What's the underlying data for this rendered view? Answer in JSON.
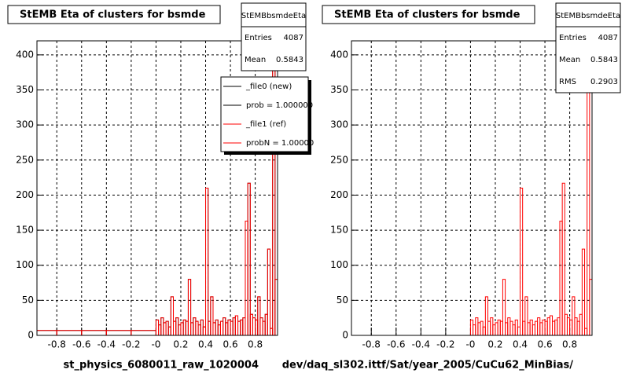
{
  "chart_data": [
    {
      "type": "histogram",
      "title": "StEMB Eta of clusters for bsmde",
      "xlabel": "st_physics_6080011_raw_1020004",
      "bins": [
        -0.96,
        -0.8,
        -0.6,
        -0.4,
        -0.2,
        0,
        0.02,
        0.04,
        0.06,
        0.08,
        0.1,
        0.12,
        0.14,
        0.16,
        0.18,
        0.2,
        0.22,
        0.24,
        0.26,
        0.28,
        0.3,
        0.32,
        0.34,
        0.36,
        0.38,
        0.4,
        0.42,
        0.44,
        0.46,
        0.48,
        0.5,
        0.52,
        0.54,
        0.56,
        0.58,
        0.6,
        0.62,
        0.64,
        0.66,
        0.68,
        0.7,
        0.72,
        0.74,
        0.76,
        0.78,
        0.8,
        0.82,
        0.84,
        0.86,
        0.88,
        0.9,
        0.92,
        0.94,
        0.96,
        0.98
      ],
      "series": [
        {
          "name": "_file0 (new)",
          "color": "#000000",
          "values": [
            7,
            7,
            7,
            7,
            7,
            22,
            15,
            25,
            18,
            20,
            12,
            55,
            20,
            25,
            15,
            18,
            22,
            20,
            80,
            18,
            25,
            20,
            15,
            22,
            12,
            210,
            20,
            55,
            18,
            22,
            15,
            20,
            25,
            18,
            22,
            20,
            25,
            28,
            20,
            22,
            25,
            163,
            217,
            30,
            25,
            22,
            55,
            25,
            20,
            30,
            123,
            10,
            400,
            80
          ]
        },
        {
          "name": "_file1 (ref)",
          "color": "#ff0000",
          "values": [
            7,
            7,
            7,
            7,
            7,
            22,
            15,
            25,
            18,
            20,
            12,
            55,
            20,
            25,
            15,
            18,
            22,
            20,
            80,
            18,
            25,
            20,
            15,
            22,
            12,
            210,
            20,
            55,
            18,
            22,
            15,
            20,
            25,
            18,
            22,
            20,
            25,
            28,
            20,
            22,
            25,
            163,
            217,
            30,
            25,
            22,
            55,
            25,
            20,
            30,
            123,
            10,
            400,
            80
          ]
        }
      ],
      "legend_notes": [
        "prob = 1.000000",
        "probN = 1.00000"
      ],
      "stats": {
        "title": "StEMBbsmdeEta",
        "rows": [
          [
            "Entries",
            "4087"
          ],
          [
            "Mean",
            "0.5843"
          ]
        ]
      },
      "xlim": [
        -0.96,
        0.98
      ],
      "ylim": [
        0,
        420
      ],
      "xticks": [
        -0.8,
        -0.6,
        -0.4,
        -0.2,
        {
          "value": 0,
          "label": "-0"
        },
        0.2,
        0.4,
        0.6,
        0.8
      ],
      "yticks": [
        0,
        50,
        100,
        150,
        200,
        250,
        300,
        350,
        400
      ],
      "grid": true
    },
    {
      "type": "histogram",
      "title": "StEMB Eta of clusters for bsmde",
      "xlabel": "dev/daq_sl302.ittf/Sat/year_2005/CuCu62_MinBias/",
      "bins": [
        -0.96,
        -0.8,
        -0.6,
        -0.4,
        -0.2,
        0,
        0.02,
        0.04,
        0.06,
        0.08,
        0.1,
        0.12,
        0.14,
        0.16,
        0.18,
        0.2,
        0.22,
        0.24,
        0.26,
        0.28,
        0.3,
        0.32,
        0.34,
        0.36,
        0.38,
        0.4,
        0.42,
        0.44,
        0.46,
        0.48,
        0.5,
        0.52,
        0.54,
        0.56,
        0.58,
        0.6,
        0.62,
        0.64,
        0.66,
        0.68,
        0.7,
        0.72,
        0.74,
        0.76,
        0.78,
        0.8,
        0.82,
        0.84,
        0.86,
        0.88,
        0.9,
        0.92,
        0.94,
        0.96,
        0.98
      ],
      "series": [
        {
          "color": "#ff0000",
          "values": [
            0,
            0,
            0,
            0,
            0,
            22,
            15,
            25,
            18,
            20,
            12,
            55,
            20,
            25,
            15,
            18,
            22,
            20,
            80,
            18,
            25,
            20,
            15,
            22,
            12,
            210,
            20,
            55,
            18,
            22,
            15,
            20,
            25,
            18,
            22,
            20,
            25,
            28,
            20,
            22,
            25,
            163,
            217,
            30,
            25,
            22,
            55,
            25,
            20,
            30,
            123,
            10,
            420,
            80
          ]
        }
      ],
      "stats": {
        "title": "StEMBbsmdeEta",
        "rows": [
          [
            "Entries",
            "4087"
          ],
          [
            "Mean",
            "0.5843"
          ],
          [
            "RMS",
            "0.2903"
          ]
        ]
      },
      "xlim": [
        -0.96,
        0.98
      ],
      "ylim": [
        0,
        420
      ],
      "xticks": [
        -0.8,
        -0.6,
        -0.4,
        -0.2,
        {
          "value": 0,
          "label": "-0"
        },
        0.2,
        0.4,
        0.6,
        0.8
      ],
      "yticks": [
        0,
        50,
        100,
        150,
        200,
        250,
        300,
        350,
        400
      ],
      "grid": true
    }
  ]
}
